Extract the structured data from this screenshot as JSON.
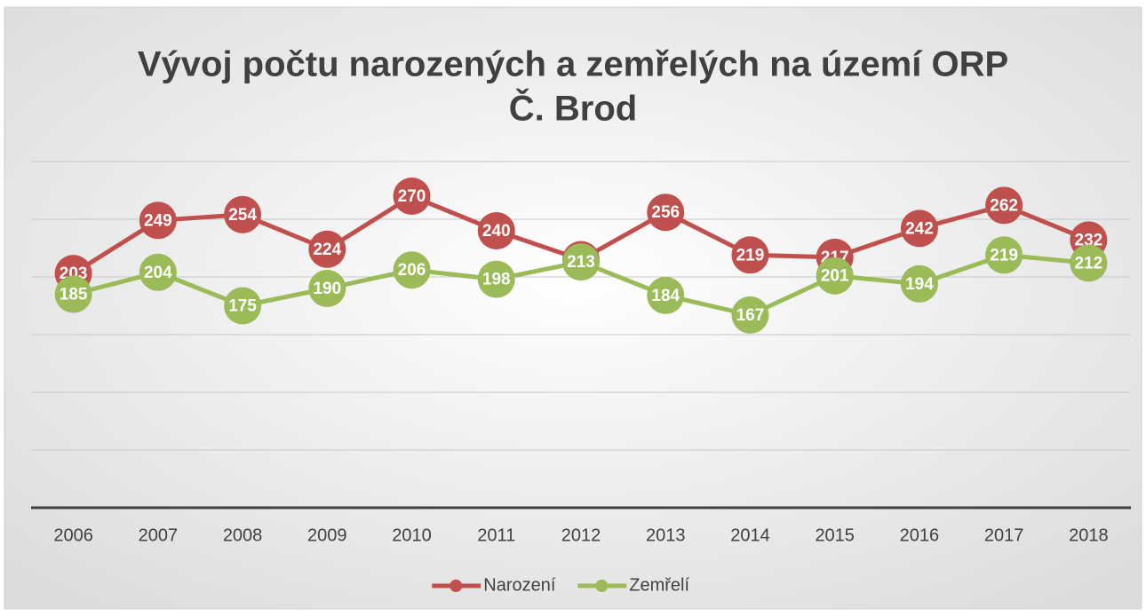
{
  "chart_data": {
    "type": "line",
    "title": [
      "Vývoj počtu narozených a zemřelých na území ORP",
      "Č. Brod"
    ],
    "categories": [
      "2006",
      "2007",
      "2008",
      "2009",
      "2010",
      "2011",
      "2012",
      "2013",
      "2014",
      "2015",
      "2016",
      "2017",
      "2018"
    ],
    "series": [
      {
        "name": "Narození",
        "color": "#c0504d",
        "values": [
          203,
          249,
          254,
          224,
          270,
          240,
          215,
          256,
          219,
          217,
          242,
          262,
          232
        ]
      },
      {
        "name": "Zemřelí",
        "color": "#9bbb59",
        "values": [
          185,
          204,
          175,
          190,
          206,
          198,
          213,
          184,
          167,
          201,
          194,
          219,
          212
        ]
      }
    ],
    "ylim": [
      0,
      300
    ],
    "yticks": [
      0,
      50,
      100,
      150,
      200,
      250,
      300
    ],
    "grid": true,
    "data_labels": true,
    "legend": "bottom"
  }
}
